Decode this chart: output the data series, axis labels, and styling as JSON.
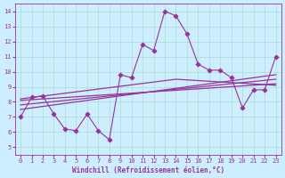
{
  "xlabel": "Windchill (Refroidissement éolien,°C)",
  "bg_color": "#cceeff",
  "line_color": "#993399",
  "xlim": [
    -0.5,
    23.5
  ],
  "ylim": [
    4.5,
    14.5
  ],
  "xticks": [
    0,
    1,
    2,
    3,
    4,
    5,
    6,
    7,
    8,
    9,
    10,
    11,
    12,
    13,
    14,
    15,
    16,
    17,
    18,
    19,
    20,
    21,
    22,
    23
  ],
  "yticks": [
    5,
    6,
    7,
    8,
    9,
    10,
    11,
    12,
    13,
    14
  ],
  "scatter_x": [
    0,
    1,
    2,
    3,
    4,
    5,
    6,
    7,
    8,
    9,
    10,
    11,
    12,
    13,
    14,
    15,
    16,
    17,
    18,
    19,
    20,
    21,
    22,
    23
  ],
  "scatter_y": [
    7.0,
    8.3,
    8.4,
    7.2,
    6.2,
    6.1,
    7.2,
    6.1,
    5.5,
    9.8,
    9.6,
    11.8,
    11.4,
    14.0,
    13.7,
    12.5,
    10.5,
    10.1,
    10.1,
    9.6,
    7.6,
    8.8,
    8.8,
    11.0
  ],
  "line1_x": [
    0,
    23
  ],
  "line1_y": [
    7.8,
    9.5
  ],
  "line2_x": [
    0,
    23
  ],
  "line2_y": [
    8.1,
    9.2
  ],
  "line3_x": [
    0,
    23
  ],
  "line3_y": [
    7.5,
    9.8
  ],
  "line4_x": [
    0,
    14,
    23
  ],
  "line4_y": [
    8.2,
    9.5,
    9.1
  ]
}
